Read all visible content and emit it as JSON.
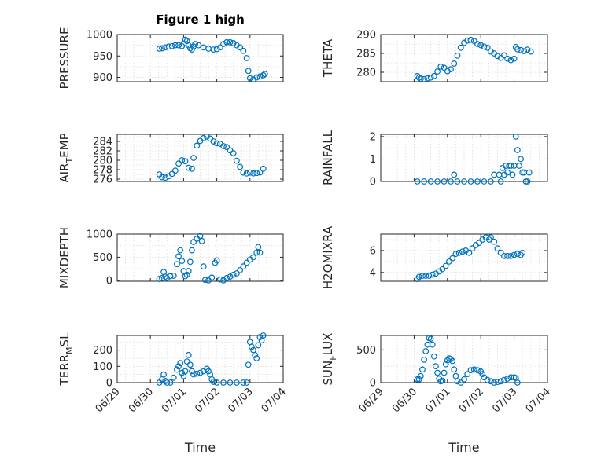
{
  "figure": {
    "title": "Figure 1 high",
    "xlabel": "Time",
    "x_ticks": [
      "06/29",
      "06/30",
      "07/01",
      "07/02",
      "07/03",
      "07/04"
    ]
  },
  "chart_data": [
    {
      "id": "pressure",
      "type": "scatter",
      "title": "Figure 1 high",
      "ylabel": "PRESSURE",
      "ylabel_sub": "",
      "ylabel_tail": "",
      "ylim": [
        890,
        1000
      ],
      "yticks": [
        900,
        950,
        1000
      ],
      "xlim": [
        "06/29",
        "07/04"
      ],
      "points": [
        [
          1.27,
          967
        ],
        [
          1.35,
          968
        ],
        [
          1.45,
          970
        ],
        [
          1.55,
          972
        ],
        [
          1.65,
          973
        ],
        [
          1.75,
          975
        ],
        [
          1.85,
          975
        ],
        [
          1.95,
          973
        ],
        [
          2.0,
          979
        ],
        [
          2.05,
          988
        ],
        [
          2.1,
          985
        ],
        [
          2.15,
          975
        ],
        [
          2.2,
          968
        ],
        [
          2.25,
          965
        ],
        [
          2.3,
          972
        ],
        [
          2.35,
          978
        ],
        [
          2.45,
          975
        ],
        [
          2.6,
          970
        ],
        [
          2.75,
          967
        ],
        [
          2.9,
          965
        ],
        [
          3.0,
          966
        ],
        [
          3.1,
          970
        ],
        [
          3.2,
          978
        ],
        [
          3.3,
          982
        ],
        [
          3.4,
          982
        ],
        [
          3.5,
          980
        ],
        [
          3.6,
          975
        ],
        [
          3.7,
          970
        ],
        [
          3.8,
          962
        ],
        [
          3.9,
          945
        ],
        [
          3.95,
          915
        ],
        [
          4.0,
          898
        ],
        [
          4.1,
          895
        ],
        [
          4.2,
          900
        ],
        [
          4.3,
          902
        ],
        [
          4.4,
          905
        ],
        [
          4.45,
          908
        ]
      ]
    },
    {
      "id": "theta",
      "type": "scatter",
      "ylabel": "THETA",
      "ylabel_sub": "",
      "ylabel_tail": "",
      "ylim": [
        277.5,
        290
      ],
      "yticks": [
        280,
        285,
        290
      ],
      "xlim": [
        "06/29",
        "07/04"
      ],
      "points": [
        [
          1.1,
          279
        ],
        [
          1.15,
          278.6
        ],
        [
          1.2,
          278.3
        ],
        [
          1.3,
          278.2
        ],
        [
          1.4,
          278.4
        ],
        [
          1.5,
          278.6
        ],
        [
          1.6,
          279
        ],
        [
          1.7,
          280.2
        ],
        [
          1.8,
          281.5
        ],
        [
          1.9,
          281.2
        ],
        [
          2.0,
          280.3
        ],
        [
          2.1,
          280.8
        ],
        [
          2.2,
          282.3
        ],
        [
          2.3,
          284.4
        ],
        [
          2.4,
          286.5
        ],
        [
          2.5,
          287.8
        ],
        [
          2.6,
          288.4
        ],
        [
          2.7,
          288.6
        ],
        [
          2.8,
          288.3
        ],
        [
          2.9,
          287.5
        ],
        [
          3.0,
          287.2
        ],
        [
          3.1,
          286.8
        ],
        [
          3.2,
          286.5
        ],
        [
          3.3,
          285.5
        ],
        [
          3.4,
          285
        ],
        [
          3.5,
          284.3
        ],
        [
          3.6,
          283.8
        ],
        [
          3.7,
          284.5
        ],
        [
          3.8,
          283.6
        ],
        [
          3.9,
          283.2
        ],
        [
          4.0,
          283.6
        ],
        [
          4.05,
          286.7
        ],
        [
          4.1,
          286.1
        ],
        [
          4.2,
          285.9
        ],
        [
          4.3,
          285.6
        ],
        [
          4.4,
          286
        ],
        [
          4.5,
          285.5
        ]
      ]
    },
    {
      "id": "air_temp",
      "type": "scatter",
      "ylabel": "AIR",
      "ylabel_sub": "T",
      "ylabel_tail": "EMP",
      "ylim": [
        275.5,
        285.5
      ],
      "yticks": [
        276,
        278,
        280,
        282,
        284
      ],
      "xlim": [
        "06/29",
        "07/04"
      ],
      "points": [
        [
          1.27,
          277
        ],
        [
          1.35,
          276.4
        ],
        [
          1.45,
          276.3
        ],
        [
          1.55,
          276.6
        ],
        [
          1.65,
          277.1
        ],
        [
          1.75,
          277.8
        ],
        [
          1.85,
          279.3
        ],
        [
          1.95,
          280
        ],
        [
          2.05,
          279.8
        ],
        [
          2.15,
          278.4
        ],
        [
          2.25,
          278.2
        ],
        [
          2.3,
          280.5
        ],
        [
          2.4,
          283.1
        ],
        [
          2.5,
          284.1
        ],
        [
          2.6,
          284.7
        ],
        [
          2.7,
          285
        ],
        [
          2.8,
          284.6
        ],
        [
          2.9,
          284
        ],
        [
          3.0,
          283.6
        ],
        [
          3.1,
          283.5
        ],
        [
          3.2,
          283
        ],
        [
          3.3,
          282.8
        ],
        [
          3.4,
          282.1
        ],
        [
          3.5,
          281.5
        ],
        [
          3.6,
          279.9
        ],
        [
          3.7,
          278.6
        ],
        [
          3.8,
          277.4
        ],
        [
          3.9,
          277.2
        ],
        [
          4.0,
          277.4
        ],
        [
          4.1,
          277.2
        ],
        [
          4.2,
          277.3
        ],
        [
          4.3,
          277.4
        ],
        [
          4.4,
          278.2
        ]
      ]
    },
    {
      "id": "rainfall",
      "type": "scatter",
      "ylabel": "RAINFALL",
      "ylabel_sub": "",
      "ylabel_tail": "",
      "ylim": [
        0,
        2.1
      ],
      "yticks": [
        0,
        1,
        2
      ],
      "xlim": [
        "06/29",
        "07/04"
      ],
      "points": [
        [
          1.1,
          0
        ],
        [
          1.3,
          0
        ],
        [
          1.5,
          0
        ],
        [
          1.7,
          0
        ],
        [
          1.9,
          0
        ],
        [
          2.1,
          0
        ],
        [
          2.2,
          0.3
        ],
        [
          2.3,
          0
        ],
        [
          2.5,
          0
        ],
        [
          2.7,
          0
        ],
        [
          2.9,
          0
        ],
        [
          3.1,
          0
        ],
        [
          3.3,
          0
        ],
        [
          3.4,
          0.3
        ],
        [
          3.55,
          0.3
        ],
        [
          3.6,
          0
        ],
        [
          3.65,
          0.6
        ],
        [
          3.7,
          0.3
        ],
        [
          3.75,
          0.7
        ],
        [
          3.8,
          0.4
        ],
        [
          3.85,
          0.7
        ],
        [
          3.9,
          0.7
        ],
        [
          3.95,
          0.3
        ],
        [
          4.0,
          0.7
        ],
        [
          4.05,
          2.0
        ],
        [
          4.1,
          1.4
        ],
        [
          4.15,
          0.7
        ],
        [
          4.2,
          1.0
        ],
        [
          4.25,
          0.4
        ],
        [
          4.3,
          0.4
        ],
        [
          4.35,
          0
        ],
        [
          4.4,
          0
        ],
        [
          4.45,
          0.4
        ]
      ]
    },
    {
      "id": "mixdepth",
      "type": "scatter",
      "ylabel": "MIXDEPTH",
      "ylabel_sub": "",
      "ylabel_tail": "",
      "ylim": [
        -20,
        1000
      ],
      "yticks": [
        0,
        500,
        1000
      ],
      "xlim": [
        "06/29",
        "07/04"
      ],
      "points": [
        [
          1.27,
          30
        ],
        [
          1.35,
          50
        ],
        [
          1.4,
          180
        ],
        [
          1.45,
          80
        ],
        [
          1.5,
          50
        ],
        [
          1.6,
          90
        ],
        [
          1.7,
          100
        ],
        [
          1.8,
          350
        ],
        [
          1.85,
          520
        ],
        [
          1.9,
          650
        ],
        [
          1.95,
          420
        ],
        [
          2.0,
          200
        ],
        [
          2.05,
          90
        ],
        [
          2.1,
          120
        ],
        [
          2.15,
          200
        ],
        [
          2.2,
          400
        ],
        [
          2.25,
          650
        ],
        [
          2.3,
          830
        ],
        [
          2.4,
          900
        ],
        [
          2.5,
          960
        ],
        [
          2.55,
          850
        ],
        [
          2.6,
          300
        ],
        [
          2.65,
          10
        ],
        [
          2.75,
          0
        ],
        [
          2.85,
          60
        ],
        [
          2.95,
          380
        ],
        [
          3.0,
          430
        ],
        [
          3.1,
          20
        ],
        [
          3.2,
          0
        ],
        [
          3.3,
          50
        ],
        [
          3.4,
          80
        ],
        [
          3.5,
          120
        ],
        [
          3.6,
          150
        ],
        [
          3.7,
          220
        ],
        [
          3.8,
          300
        ],
        [
          3.9,
          380
        ],
        [
          4.0,
          450
        ],
        [
          4.1,
          500
        ],
        [
          4.2,
          600
        ],
        [
          4.25,
          720
        ],
        [
          4.3,
          600
        ]
      ]
    },
    {
      "id": "h2omixra",
      "type": "scatter",
      "ylabel": "H2OMIXRA",
      "ylabel_sub": "",
      "ylabel_tail": "",
      "ylim": [
        3.2,
        7.5
      ],
      "yticks": [
        4,
        6
      ],
      "xlim": [
        "06/29",
        "07/04"
      ],
      "points": [
        [
          1.1,
          3.4
        ],
        [
          1.15,
          3.6
        ],
        [
          1.25,
          3.7
        ],
        [
          1.35,
          3.7
        ],
        [
          1.45,
          3.7
        ],
        [
          1.55,
          3.8
        ],
        [
          1.65,
          3.9
        ],
        [
          1.75,
          4.1
        ],
        [
          1.85,
          4.3
        ],
        [
          1.95,
          4.6
        ],
        [
          2.05,
          5.0
        ],
        [
          2.15,
          5.3
        ],
        [
          2.25,
          5.7
        ],
        [
          2.35,
          5.8
        ],
        [
          2.45,
          5.9
        ],
        [
          2.55,
          6.0
        ],
        [
          2.65,
          5.8
        ],
        [
          2.75,
          6.2
        ],
        [
          2.85,
          6.5
        ],
        [
          2.95,
          6.7
        ],
        [
          3.05,
          7.0
        ],
        [
          3.15,
          7.2
        ],
        [
          3.25,
          7.0
        ],
        [
          3.3,
          7.2
        ],
        [
          3.4,
          6.8
        ],
        [
          3.5,
          6.2
        ],
        [
          3.6,
          5.8
        ],
        [
          3.7,
          5.5
        ],
        [
          3.8,
          5.5
        ],
        [
          3.9,
          5.5
        ],
        [
          4.0,
          5.6
        ],
        [
          4.1,
          5.7
        ],
        [
          4.2,
          5.6
        ],
        [
          4.25,
          5.8
        ]
      ]
    },
    {
      "id": "terr_msl",
      "type": "scatter",
      "ylabel": "TERR",
      "ylabel_sub": "M",
      "ylabel_tail": "SL",
      "ylim": [
        0,
        290
      ],
      "yticks": [
        0,
        100,
        200
      ],
      "xlim": [
        "06/29",
        "07/04"
      ],
      "points": [
        [
          1.27,
          0
        ],
        [
          1.35,
          20
        ],
        [
          1.4,
          50
        ],
        [
          1.45,
          10
        ],
        [
          1.5,
          0
        ],
        [
          1.6,
          0
        ],
        [
          1.7,
          30
        ],
        [
          1.8,
          80
        ],
        [
          1.85,
          100
        ],
        [
          1.9,
          120
        ],
        [
          1.95,
          60
        ],
        [
          2.0,
          40
        ],
        [
          2.05,
          70
        ],
        [
          2.1,
          130
        ],
        [
          2.15,
          170
        ],
        [
          2.2,
          110
        ],
        [
          2.25,
          70
        ],
        [
          2.3,
          50
        ],
        [
          2.4,
          55
        ],
        [
          2.5,
          60
        ],
        [
          2.6,
          70
        ],
        [
          2.7,
          85
        ],
        [
          2.75,
          70
        ],
        [
          2.8,
          50
        ],
        [
          2.85,
          20
        ],
        [
          2.9,
          5
        ],
        [
          3.0,
          0
        ],
        [
          3.2,
          0
        ],
        [
          3.4,
          0
        ],
        [
          3.6,
          0
        ],
        [
          3.8,
          0
        ],
        [
          3.9,
          0
        ],
        [
          3.95,
          110
        ],
        [
          4.0,
          250
        ],
        [
          4.05,
          220
        ],
        [
          4.1,
          200
        ],
        [
          4.15,
          170
        ],
        [
          4.2,
          150
        ],
        [
          4.25,
          230
        ],
        [
          4.3,
          280
        ],
        [
          4.35,
          260
        ],
        [
          4.4,
          290
        ]
      ]
    },
    {
      "id": "sun_flux",
      "type": "scatter",
      "ylabel": "SUN",
      "ylabel_sub": "F",
      "ylabel_tail": "LUX",
      "ylim": [
        0,
        720
      ],
      "yticks": [
        0,
        500
      ],
      "xlim": [
        "06/29",
        "07/04"
      ],
      "points": [
        [
          1.1,
          50
        ],
        [
          1.15,
          50
        ],
        [
          1.2,
          100
        ],
        [
          1.25,
          200
        ],
        [
          1.3,
          350
        ],
        [
          1.35,
          480
        ],
        [
          1.4,
          580
        ],
        [
          1.45,
          680
        ],
        [
          1.5,
          670
        ],
        [
          1.55,
          580
        ],
        [
          1.6,
          400
        ],
        [
          1.65,
          250
        ],
        [
          1.7,
          150
        ],
        [
          1.75,
          60
        ],
        [
          1.8,
          20
        ],
        [
          1.85,
          30
        ],
        [
          1.9,
          150
        ],
        [
          1.95,
          280
        ],
        [
          2.0,
          340
        ],
        [
          2.05,
          370
        ],
        [
          2.1,
          360
        ],
        [
          2.15,
          330
        ],
        [
          2.2,
          200
        ],
        [
          2.25,
          100
        ],
        [
          2.3,
          20
        ],
        [
          2.4,
          0
        ],
        [
          2.5,
          50
        ],
        [
          2.6,
          130
        ],
        [
          2.7,
          190
        ],
        [
          2.8,
          200
        ],
        [
          2.9,
          190
        ],
        [
          3.0,
          170
        ],
        [
          3.05,
          130
        ],
        [
          3.1,
          80
        ],
        [
          3.2,
          40
        ],
        [
          3.3,
          20
        ],
        [
          3.4,
          0
        ],
        [
          3.5,
          10
        ],
        [
          3.6,
          20
        ],
        [
          3.7,
          40
        ],
        [
          3.8,
          60
        ],
        [
          3.9,
          80
        ],
        [
          4.0,
          80
        ],
        [
          4.05,
          70
        ],
        [
          4.1,
          0
        ]
      ]
    }
  ]
}
